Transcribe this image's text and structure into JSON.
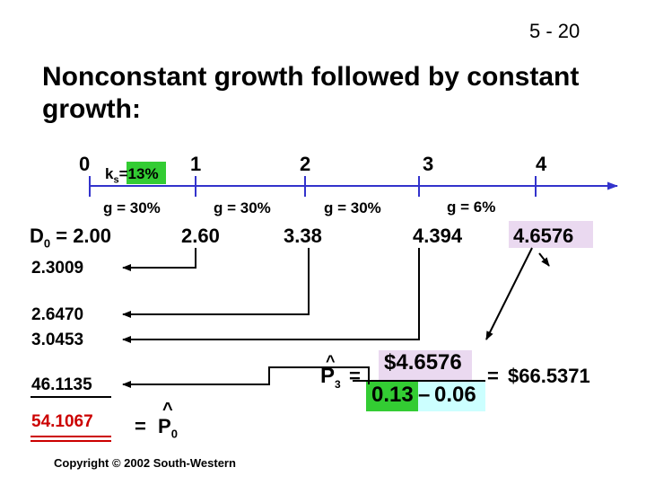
{
  "slide_number": "5 - 20",
  "title": "Nonconstant growth followed by constant growth:",
  "timeline": {
    "periods": [
      "0",
      "1",
      "2",
      "3",
      "4"
    ],
    "discount_rate": {
      "k": "k",
      "sub": "s",
      "eq": "=",
      "value": "13%"
    },
    "growth_rates": [
      "g = 30%",
      "g = 30%",
      "g = 30%",
      "g = 6%"
    ],
    "d0_label": {
      "d": "D",
      "sub": "0",
      "rest": " = 2.00"
    },
    "cash_flows": [
      "2.60",
      "3.38",
      "4.394",
      "4.6576"
    ]
  },
  "present_values": [
    "2.3009",
    "2.6470",
    "3.0453",
    "46.1135"
  ],
  "total": "54.1067",
  "p0_label": {
    "eq": "=",
    "hat": "^",
    "p": "P",
    "sub": "0"
  },
  "formula": {
    "lhs_p": "P",
    "lhs_hat": "^",
    "lhs_sub": "3",
    "eq1": "=",
    "numerator": "$4.6576",
    "denom_k": "0.13",
    "minus": "–",
    "denom_g": "0.06",
    "eq2": "=",
    "result": "$66.5371"
  },
  "copyright": "Copyright © 2002 South-Western",
  "colors": {
    "green": "#33cc33",
    "lavender": "#ead9f0",
    "cyan": "#ccffff",
    "arrow_blue": "#3333cc",
    "line": "#000000",
    "underline_red": "#cc0000"
  }
}
